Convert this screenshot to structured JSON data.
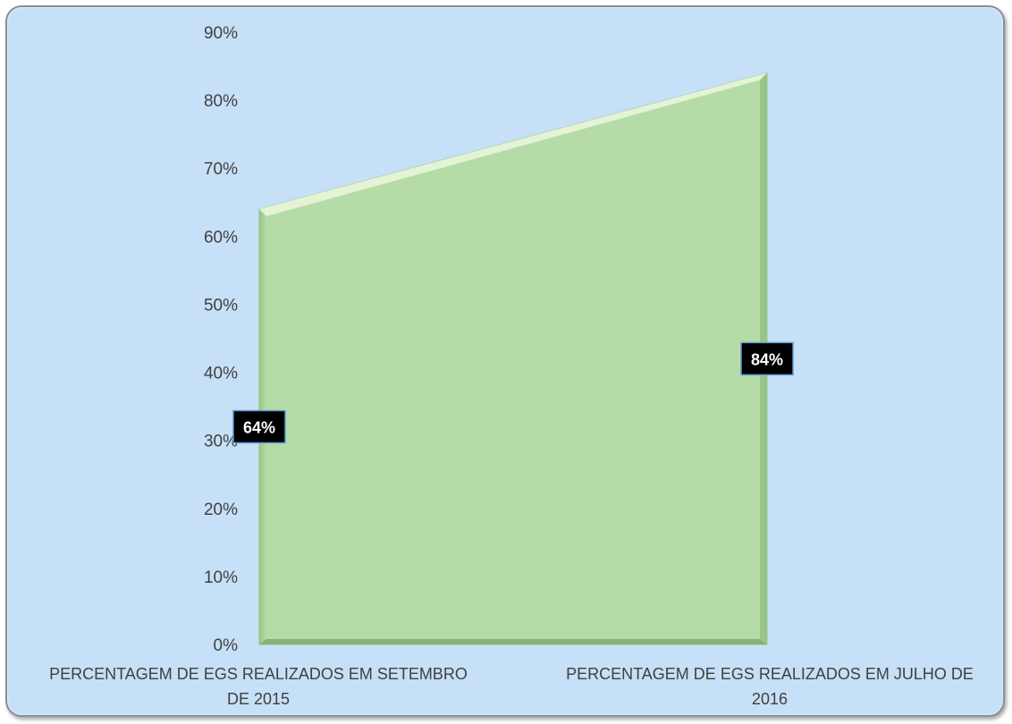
{
  "chart_data": {
    "type": "area",
    "categories": [
      [
        "PERCENTAGEM DE EGS REALIZADOS EM SETEMBRO",
        "DE 2015"
      ],
      [
        "PERCENTAGEM DE EGS REALIZADOS EM JULHO DE",
        "2016"
      ]
    ],
    "series": [
      {
        "values": [
          0.64,
          0.84
        ],
        "labels": [
          "64%",
          "84%"
        ]
      }
    ],
    "y_ticks": [
      "0%",
      "10%",
      "20%",
      "30%",
      "40%",
      "50%",
      "60%",
      "70%",
      "80%",
      "90%"
    ],
    "ylim": [
      0,
      0.9
    ],
    "grid": false,
    "legend": "none",
    "colors": {
      "background": "#c6e0f7",
      "area_fill": "#b5dca6",
      "area_top": "#e4f3d6",
      "area_side": "#8fbf7c",
      "label_bg": "#000000",
      "label_border": "#5b9bd5",
      "text": "#404040"
    }
  }
}
